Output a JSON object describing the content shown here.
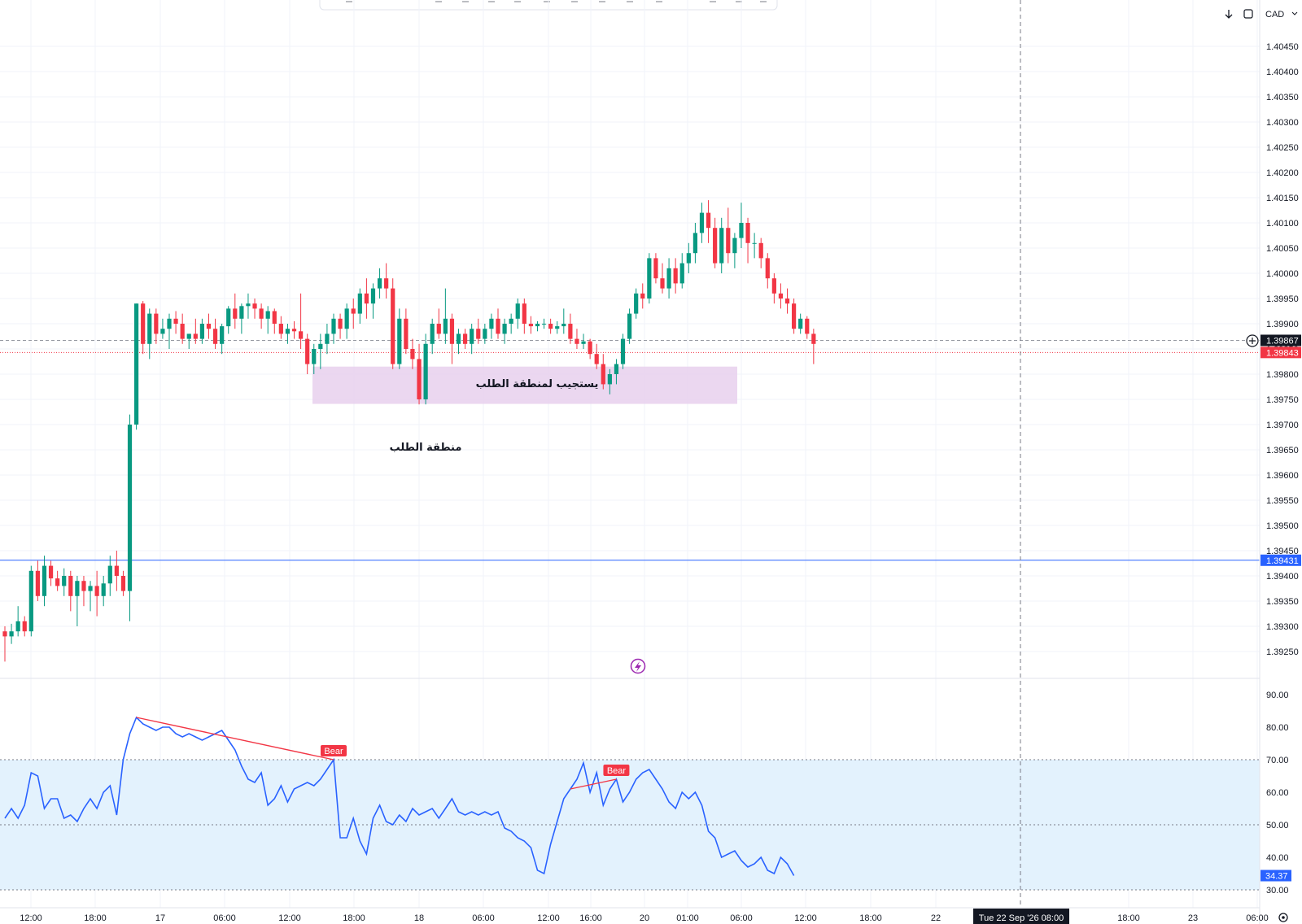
{
  "toolbar": {
    "currency": "CAD"
  },
  "colors": {
    "up": "#089981",
    "down": "#f23645",
    "rsi": "#2962ff",
    "zone": "#e9d3ee",
    "rsi_band": "#e3f2fd",
    "blue_line": "#2962ff"
  },
  "icons": [
    "arrow-down-icon",
    "refresh-icon",
    "lightning-icon",
    "settings-icon",
    "add-icon"
  ],
  "annotations": {
    "zone_label": "يستجيب لمنطقة الطلب",
    "demand_label": "منطقة الطلب"
  },
  "crosshair_label": "Tue 22 Sep '26   08:00",
  "chart_data": [
    {
      "type": "candlestick",
      "ylim": [
        1.39195,
        1.40505
      ],
      "y_ticks": [
        "1.40450",
        "1.40400",
        "1.40350",
        "1.40300",
        "1.40250",
        "1.40200",
        "1.40150",
        "1.40100",
        "1.40050",
        "1.40000",
        "1.39950",
        "1.39900",
        "1.39850",
        "1.39800",
        "1.39750",
        "1.39700",
        "1.39650",
        "1.39600",
        "1.39550",
        "1.39500",
        "1.39450",
        "1.39400",
        "1.39350",
        "1.39300",
        "1.39250"
      ],
      "x_ticks": [
        "12:00",
        "18:00",
        "17",
        "06:00",
        "12:00",
        "18:00",
        "18",
        "06:00",
        "12:00",
        "16:00",
        "20",
        "01:00",
        "06:00",
        "12:00",
        "18:00",
        "22",
        "18:00",
        "23",
        "06:00"
      ],
      "price_labels": {
        "last": "1.39867",
        "bid": "1.39843",
        "line": "1.39431"
      },
      "horizontal_line": 1.39431,
      "zone": {
        "top": 1.39815,
        "bottom": 1.39741
      },
      "candles": [
        [
          1.3929,
          1.393,
          1.3923,
          1.3928
        ],
        [
          1.3928,
          1.39305,
          1.39265,
          1.3929
        ],
        [
          1.3929,
          1.3934,
          1.3928,
          1.3931
        ],
        [
          1.3931,
          1.3932,
          1.3928,
          1.3929
        ],
        [
          1.3929,
          1.3942,
          1.3928,
          1.3941
        ],
        [
          1.3941,
          1.3943,
          1.3935,
          1.3936
        ],
        [
          1.3936,
          1.3944,
          1.3934,
          1.3942
        ],
        [
          1.3942,
          1.3943,
          1.3938,
          1.39395
        ],
        [
          1.39395,
          1.3941,
          1.3937,
          1.3938
        ],
        [
          1.3938,
          1.39415,
          1.3936,
          1.394
        ],
        [
          1.394,
          1.3941,
          1.3933,
          1.3936
        ],
        [
          1.3936,
          1.394,
          1.393,
          1.3939
        ],
        [
          1.3939,
          1.394,
          1.3934,
          1.3937
        ],
        [
          1.3937,
          1.3939,
          1.3933,
          1.3938
        ],
        [
          1.3938,
          1.3941,
          1.3932,
          1.3936
        ],
        [
          1.3936,
          1.394,
          1.3934,
          1.39385
        ],
        [
          1.39385,
          1.3944,
          1.3936,
          1.3942
        ],
        [
          1.3942,
          1.3945,
          1.3937,
          1.394
        ],
        [
          1.394,
          1.3941,
          1.3936,
          1.3937
        ],
        [
          1.3937,
          1.3972,
          1.3931,
          1.397
        ],
        [
          1.397,
          1.3994,
          1.3969,
          1.3994
        ],
        [
          1.3994,
          1.39945,
          1.3984,
          1.3986
        ],
        [
          1.3986,
          1.3993,
          1.3983,
          1.3992
        ],
        [
          1.3992,
          1.3993,
          1.3986,
          1.3988
        ],
        [
          1.3988,
          1.3991,
          1.3987,
          1.3989
        ],
        [
          1.3989,
          1.3992,
          1.3985,
          1.3991
        ],
        [
          1.3991,
          1.39925,
          1.3988,
          1.399
        ],
        [
          1.399,
          1.3992,
          1.3986,
          1.3987
        ],
        [
          1.3987,
          1.3988,
          1.3985,
          1.3988
        ],
        [
          1.3988,
          1.3991,
          1.3986,
          1.3987
        ],
        [
          1.3987,
          1.3991,
          1.3986,
          1.399
        ],
        [
          1.399,
          1.3992,
          1.3987,
          1.3989
        ],
        [
          1.3989,
          1.3991,
          1.3985,
          1.3986
        ],
        [
          1.3986,
          1.399,
          1.3984,
          1.39895
        ],
        [
          1.39895,
          1.39935,
          1.3988,
          1.3993
        ],
        [
          1.3993,
          1.3996,
          1.3989,
          1.3991
        ],
        [
          1.3991,
          1.3994,
          1.3988,
          1.39935
        ],
        [
          1.39935,
          1.3996,
          1.3991,
          1.3994
        ],
        [
          1.3994,
          1.3995,
          1.3991,
          1.3993
        ],
        [
          1.3993,
          1.3994,
          1.3989,
          1.3991
        ],
        [
          1.3991,
          1.39935,
          1.3988,
          1.39925
        ],
        [
          1.39925,
          1.3993,
          1.3988,
          1.399
        ],
        [
          1.399,
          1.39915,
          1.3987,
          1.3988
        ],
        [
          1.3988,
          1.399,
          1.3986,
          1.3989
        ],
        [
          1.3989,
          1.39905,
          1.3987,
          1.39885
        ],
        [
          1.39885,
          1.3996,
          1.3985,
          1.3987
        ],
        [
          1.3987,
          1.3988,
          1.398,
          1.3982
        ],
        [
          1.3982,
          1.3986,
          1.398,
          1.3985
        ],
        [
          1.3985,
          1.3988,
          1.3981,
          1.3986
        ],
        [
          1.3986,
          1.399,
          1.3984,
          1.3988
        ],
        [
          1.3988,
          1.3992,
          1.3986,
          1.3991
        ],
        [
          1.3991,
          1.3992,
          1.3987,
          1.3989
        ],
        [
          1.3989,
          1.3994,
          1.3987,
          1.3993
        ],
        [
          1.3993,
          1.3995,
          1.3989,
          1.3992
        ],
        [
          1.3992,
          1.3997,
          1.399,
          1.3996
        ],
        [
          1.3996,
          1.3999,
          1.3991,
          1.3994
        ],
        [
          1.3994,
          1.3998,
          1.3991,
          1.3997
        ],
        [
          1.3997,
          1.4001,
          1.3995,
          1.3999
        ],
        [
          1.3999,
          1.4002,
          1.3995,
          1.3997
        ],
        [
          1.3997,
          1.3999,
          1.3981,
          1.3982
        ],
        [
          1.3982,
          1.3993,
          1.3981,
          1.3991
        ],
        [
          1.3991,
          1.3993,
          1.3984,
          1.3985
        ],
        [
          1.3985,
          1.3987,
          1.3981,
          1.3983
        ],
        [
          1.3983,
          1.3986,
          1.3974,
          1.3975
        ],
        [
          1.3975,
          1.3988,
          1.3974,
          1.3986
        ],
        [
          1.3986,
          1.3991,
          1.3984,
          1.399
        ],
        [
          1.399,
          1.3993,
          1.3987,
          1.3988
        ],
        [
          1.3988,
          1.3997,
          1.3986,
          1.3991
        ],
        [
          1.3991,
          1.3992,
          1.3982,
          1.3986
        ],
        [
          1.3986,
          1.3989,
          1.3984,
          1.3988
        ],
        [
          1.3988,
          1.3989,
          1.3985,
          1.3986
        ],
        [
          1.3986,
          1.399,
          1.3984,
          1.3989
        ],
        [
          1.3989,
          1.3991,
          1.3986,
          1.3987
        ],
        [
          1.3987,
          1.399,
          1.3986,
          1.3989
        ],
        [
          1.3989,
          1.3992,
          1.3987,
          1.3991
        ],
        [
          1.3991,
          1.3993,
          1.3987,
          1.3988
        ],
        [
          1.3988,
          1.3991,
          1.3986,
          1.399
        ],
        [
          1.399,
          1.3992,
          1.3988,
          1.3991
        ],
        [
          1.3991,
          1.3995,
          1.3989,
          1.3994
        ],
        [
          1.3994,
          1.3995,
          1.3988,
          1.399
        ],
        [
          1.399,
          1.39915,
          1.3988,
          1.39895
        ],
        [
          1.39895,
          1.39905,
          1.39885,
          1.399
        ],
        [
          1.399,
          1.3991,
          1.3989,
          1.399
        ],
        [
          1.399,
          1.3991,
          1.3988,
          1.3989
        ],
        [
          1.3989,
          1.39905,
          1.3988,
          1.39895
        ],
        [
          1.39895,
          1.3993,
          1.3988,
          1.399
        ],
        [
          1.399,
          1.3992,
          1.3986,
          1.3987
        ],
        [
          1.3987,
          1.3989,
          1.3985,
          1.3986
        ],
        [
          1.3986,
          1.3988,
          1.3985,
          1.39865
        ],
        [
          1.39865,
          1.3987,
          1.3983,
          1.3984
        ],
        [
          1.3984,
          1.3986,
          1.3981,
          1.3982
        ],
        [
          1.3982,
          1.3984,
          1.3977,
          1.3978
        ],
        [
          1.3978,
          1.3981,
          1.3976,
          1.398
        ],
        [
          1.398,
          1.3983,
          1.3978,
          1.3982
        ],
        [
          1.3982,
          1.3988,
          1.3981,
          1.3987
        ],
        [
          1.3987,
          1.3993,
          1.3986,
          1.3992
        ],
        [
          1.3992,
          1.3997,
          1.3991,
          1.3996
        ],
        [
          1.3996,
          1.3998,
          1.3993,
          1.3995
        ],
        [
          1.3995,
          1.4004,
          1.3994,
          1.4003
        ],
        [
          1.4003,
          1.4004,
          1.3998,
          1.3999
        ],
        [
          1.3999,
          1.4002,
          1.3996,
          1.3997
        ],
        [
          1.3997,
          1.4003,
          1.3995,
          1.4001
        ],
        [
          1.4001,
          1.4003,
          1.3996,
          1.3998
        ],
        [
          1.3998,
          1.4004,
          1.3997,
          1.4002
        ],
        [
          1.4002,
          1.4006,
          1.4,
          1.4004
        ],
        [
          1.4004,
          1.401,
          1.4002,
          1.4008
        ],
        [
          1.4008,
          1.4014,
          1.4006,
          1.4012
        ],
        [
          1.4012,
          1.40145,
          1.4006,
          1.4009
        ],
        [
          1.4009,
          1.4011,
          1.4001,
          1.4002
        ],
        [
          1.4002,
          1.4011,
          1.4,
          1.4009
        ],
        [
          1.4009,
          1.4013,
          1.4002,
          1.4004
        ],
        [
          1.4004,
          1.4008,
          1.4001,
          1.4007
        ],
        [
          1.4007,
          1.4014,
          1.4005,
          1.401
        ],
        [
          1.401,
          1.4011,
          1.4002,
          1.4006
        ],
        [
          1.4006,
          1.4008,
          1.4003,
          1.4006
        ],
        [
          1.4006,
          1.4007,
          1.4001,
          1.4003
        ],
        [
          1.4003,
          1.4004,
          1.3997,
          1.3999
        ],
        [
          1.3999,
          1.4,
          1.3994,
          1.3996
        ],
        [
          1.3996,
          1.3998,
          1.3993,
          1.3995
        ],
        [
          1.3995,
          1.3997,
          1.3992,
          1.3994
        ],
        [
          1.3994,
          1.3995,
          1.3988,
          1.3989
        ],
        [
          1.3989,
          1.3992,
          1.3988,
          1.3991
        ],
        [
          1.3991,
          1.39915,
          1.3987,
          1.3988
        ],
        [
          1.3988,
          1.3989,
          1.3982,
          1.3986
        ]
      ]
    },
    {
      "type": "line",
      "name": "RSI",
      "ylim": [
        28.0,
        96.0
      ],
      "y_ticks": [
        "90.00",
        "80.00",
        "70.00",
        "60.00",
        "50.00",
        "40.00",
        "30.00"
      ],
      "band": [
        30,
        70
      ],
      "midline": 50,
      "last_label": "34.37",
      "values": [
        52,
        55,
        52,
        56,
        66,
        65,
        55,
        58,
        58,
        52,
        53,
        51,
        55,
        58,
        55,
        60,
        62,
        53,
        70,
        78,
        83,
        81,
        80,
        79,
        80,
        80,
        78,
        77,
        78,
        77,
        76,
        77,
        78,
        79,
        76,
        73,
        68,
        64,
        63,
        66,
        56,
        58,
        62,
        57,
        61,
        62,
        63,
        62,
        64,
        67,
        70,
        46,
        46,
        52,
        45,
        41,
        52,
        56,
        51,
        50,
        53,
        51,
        55,
        53,
        54,
        55,
        52,
        55,
        58,
        54,
        53,
        54,
        53,
        54,
        53,
        54,
        49,
        48,
        46,
        45,
        43,
        36,
        35,
        44,
        51,
        58,
        61,
        64,
        69,
        60,
        66,
        56,
        61,
        64,
        57,
        60,
        64,
        66,
        67,
        64,
        61,
        57,
        55,
        60,
        58,
        60,
        56,
        48,
        46,
        40,
        41,
        42,
        39,
        37,
        38,
        40,
        36,
        35,
        40,
        38,
        34.37
      ],
      "divergences": [
        {
          "label": "Bear",
          "start_idx": 20,
          "end_idx": 50
        },
        {
          "label": "Bear",
          "start_idx": 86,
          "end_idx": 93
        }
      ]
    }
  ]
}
